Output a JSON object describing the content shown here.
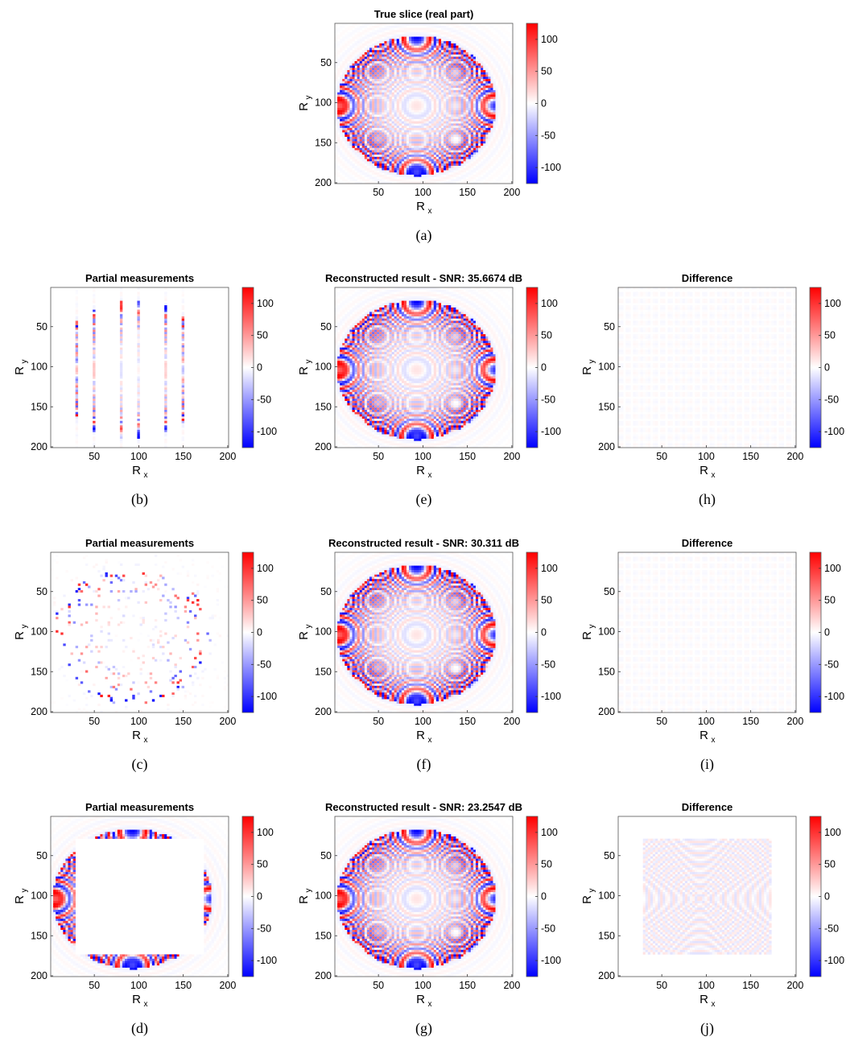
{
  "chart_data": {
    "type": "heatmap",
    "colormap": "blue-white-red",
    "colors": {
      "low": "#0000ff",
      "mid": "#ffffff",
      "high": "#ff0000"
    },
    "xlabel_main": "R",
    "xlabel_sub": "x",
    "ylabel_main": "R",
    "ylabel_sub": "y",
    "x_ticks": [
      50,
      100,
      150,
      200
    ],
    "y_ticks": [
      50,
      100,
      150,
      200
    ],
    "xlim": [
      1,
      201
    ],
    "ylim": [
      1,
      201
    ],
    "colorbar_ticks": [
      100,
      50,
      0,
      -50,
      -100
    ],
    "colorbar_labels": [
      "100",
      "50",
      "0",
      "-50",
      "-100"
    ],
    "clim": [
      -125,
      125
    ],
    "panels": [
      {
        "id": "a",
        "title": "True slice (real part)",
        "caption": "(a)",
        "kind": "true"
      },
      {
        "id": "b",
        "title": "Partial measurements",
        "caption": "(b)",
        "kind": "mask-lines"
      },
      {
        "id": "e",
        "title": "Reconstructed result - SNR: 35.6674 dB",
        "caption": "(e)",
        "kind": "recon"
      },
      {
        "id": "h",
        "title": "Difference",
        "caption": "(h)",
        "kind": "diff"
      },
      {
        "id": "c",
        "title": "Partial measurements",
        "caption": "(c)",
        "kind": "mask-random"
      },
      {
        "id": "f",
        "title": "Reconstructed result - SNR: 30.311 dB",
        "caption": "(f)",
        "kind": "recon"
      },
      {
        "id": "i",
        "title": "Difference",
        "caption": "(i)",
        "kind": "diff"
      },
      {
        "id": "d",
        "title": "Partial measurements",
        "caption": "(d)",
        "kind": "mask-square"
      },
      {
        "id": "g",
        "title": "Reconstructed result - SNR: 23.2547 dB",
        "caption": "(g)",
        "kind": "recon"
      },
      {
        "id": "j",
        "title": "Difference",
        "caption": "(j)",
        "kind": "diff-square"
      }
    ]
  }
}
